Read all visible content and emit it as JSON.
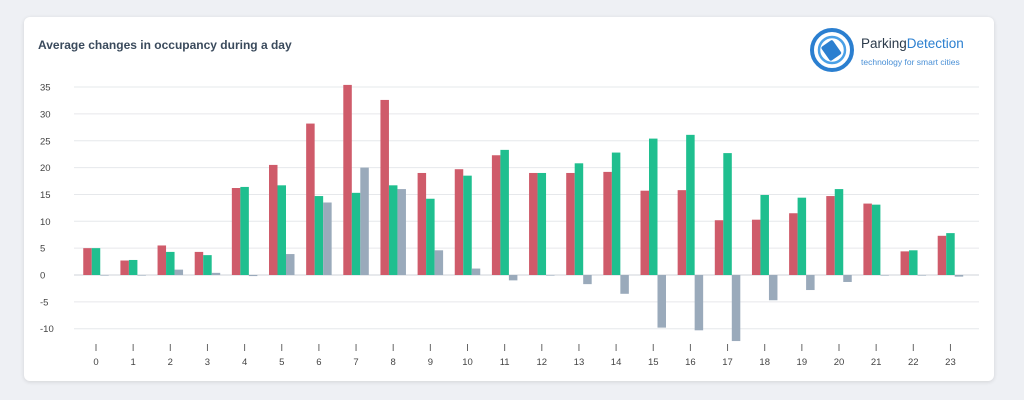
{
  "title": "Average changes in occupancy during a day",
  "logo": {
    "name_part1": "Parking",
    "name_part2": "Detection",
    "tagline": "technology for smart cities",
    "icon": "parking-detection-logo"
  },
  "chart_data": {
    "type": "bar",
    "title": "Average changes in occupancy during a day",
    "xlabel": "",
    "ylabel": "",
    "categories": [
      "0",
      "1",
      "2",
      "3",
      "4",
      "5",
      "6",
      "7",
      "8",
      "9",
      "10",
      "11",
      "12",
      "13",
      "14",
      "15",
      "16",
      "17",
      "18",
      "19",
      "20",
      "21",
      "22",
      "23"
    ],
    "ylim": [
      -12,
      37
    ],
    "yticks": [
      -10,
      -5,
      0,
      5,
      10,
      15,
      20,
      25,
      30,
      35
    ],
    "grid": true,
    "legend": "none",
    "series": [
      {
        "color": "#cf5b6a",
        "values": [
          5,
          2.7,
          5.5,
          4.3,
          16.2,
          20.5,
          28.2,
          35.4,
          32.6,
          19,
          19.7,
          22.3,
          19,
          19,
          19.2,
          15.7,
          15.8,
          10.2,
          10.3,
          11.5,
          14.7,
          13.3,
          4.4,
          7.3
        ]
      },
      {
        "color": "#1fbf8f",
        "values": [
          5,
          2.8,
          4.3,
          3.7,
          16.4,
          16.7,
          14.7,
          15.3,
          16.7,
          14.2,
          18.5,
          23.3,
          19,
          20.8,
          22.8,
          25.4,
          26.1,
          22.7,
          14.9,
          14.4,
          16,
          13.1,
          4.6,
          7.8
        ]
      },
      {
        "color": "#9aaabb",
        "values": [
          0,
          0,
          1,
          0.4,
          -0.2,
          3.9,
          13.5,
          20,
          16,
          4.6,
          1.2,
          -1,
          0,
          -1.7,
          -3.5,
          -9.8,
          -10.3,
          -12.3,
          -4.7,
          -2.8,
          -1.3,
          0,
          0,
          -0.3
        ]
      }
    ]
  }
}
